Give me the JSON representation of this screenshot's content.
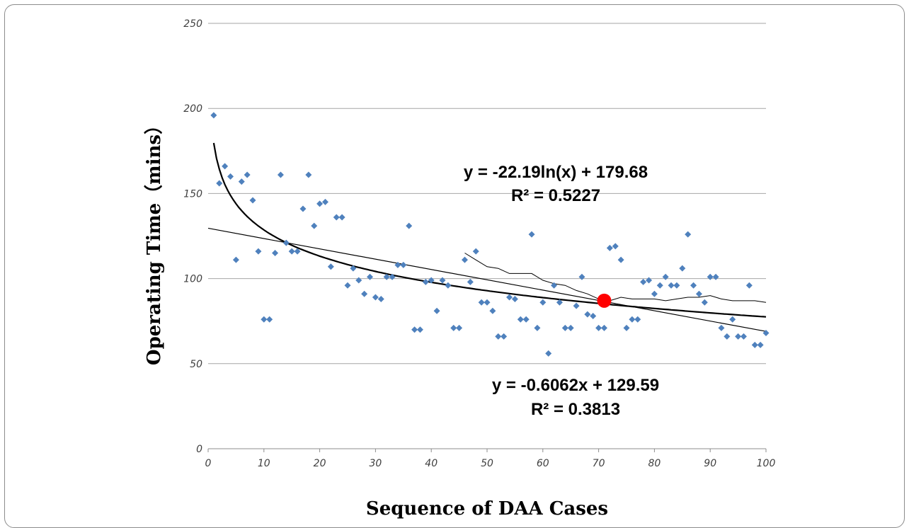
{
  "chart_data": {
    "type": "scatter",
    "ylabel": "Operating Time（mins）",
    "xlabel": "Sequence of DAA Cases",
    "xlim": [
      0,
      100
    ],
    "ylim": [
      0,
      250
    ],
    "xticks": [
      0,
      10,
      20,
      30,
      40,
      50,
      60,
      70,
      80,
      90,
      100
    ],
    "yticks": [
      0,
      50,
      100,
      150,
      200,
      250
    ],
    "grid": "horizontal",
    "legend": "none",
    "colors": {
      "points": "#4f81bd",
      "highlight": "#ff0000",
      "lines": "#000000",
      "grid": "#a6a6a6"
    },
    "points": {
      "x": [
        1,
        2,
        3,
        4,
        5,
        6,
        7,
        8,
        9,
        10,
        11,
        12,
        13,
        14,
        15,
        16,
        17,
        18,
        19,
        20,
        21,
        22,
        23,
        24,
        25,
        26,
        27,
        28,
        29,
        30,
        31,
        32,
        33,
        34,
        35,
        36,
        37,
        38,
        39,
        40,
        41,
        42,
        43,
        44,
        45,
        46,
        47,
        48,
        49,
        50,
        51,
        52,
        53,
        54,
        55,
        56,
        57,
        58,
        59,
        60,
        61,
        62,
        63,
        64,
        65,
        66,
        67,
        68,
        69,
        70,
        71,
        72,
        73,
        74,
        75,
        76,
        77,
        78,
        79,
        80,
        81,
        82,
        83,
        84,
        85,
        86,
        87,
        88,
        89,
        90,
        91,
        92,
        93,
        94,
        95,
        96,
        97,
        98,
        99,
        100
      ],
      "y": [
        196,
        156,
        166,
        160,
        111,
        157,
        161,
        146,
        116,
        76,
        76,
        115,
        161,
        121,
        116,
        116,
        141,
        161,
        131,
        144,
        145,
        107,
        136,
        136,
        96,
        106,
        99,
        91,
        101,
        89,
        88,
        101,
        101,
        108,
        108,
        131,
        70,
        70,
        98,
        99,
        81,
        99,
        96,
        71,
        71,
        111,
        98,
        116,
        86,
        86,
        81,
        66,
        66,
        89,
        88,
        76,
        76,
        126,
        71,
        86,
        56,
        96,
        86,
        71,
        71,
        84,
        101,
        79,
        78,
        71,
        71,
        118,
        119,
        111,
        71,
        76,
        76,
        98,
        99,
        91,
        96,
        101,
        96,
        96,
        106,
        126,
        96,
        91,
        86,
        101,
        101,
        71,
        66,
        76,
        66,
        66,
        96,
        61,
        61,
        68
      ]
    },
    "highlight_point": {
      "x": 71,
      "y": 87
    },
    "trendlines": [
      {
        "label": "y = -22.19ln(x) + 179.68",
        "r2_label": "R² = 0.5227",
        "kind": "log",
        "a": -22.19,
        "b": 179.68
      },
      {
        "label": "y = -0.6062x + 129.59",
        "r2_label": "R² = 0.3813",
        "kind": "linear",
        "a": -0.6062,
        "b": 129.59
      }
    ],
    "moving_average": {
      "x": [
        46,
        48,
        50,
        52,
        54,
        56,
        58,
        60,
        62,
        64,
        66,
        68,
        70,
        72,
        74,
        76,
        78,
        80,
        82,
        84,
        86,
        88,
        90,
        91,
        92,
        94,
        96,
        98,
        100
      ],
      "y": [
        115,
        111,
        107,
        106,
        103,
        103,
        103,
        99,
        97,
        96,
        93,
        91,
        88,
        87,
        89,
        88,
        88,
        88,
        87,
        88,
        89,
        89,
        90,
        89,
        88,
        87,
        87,
        87,
        86
      ]
    }
  }
}
